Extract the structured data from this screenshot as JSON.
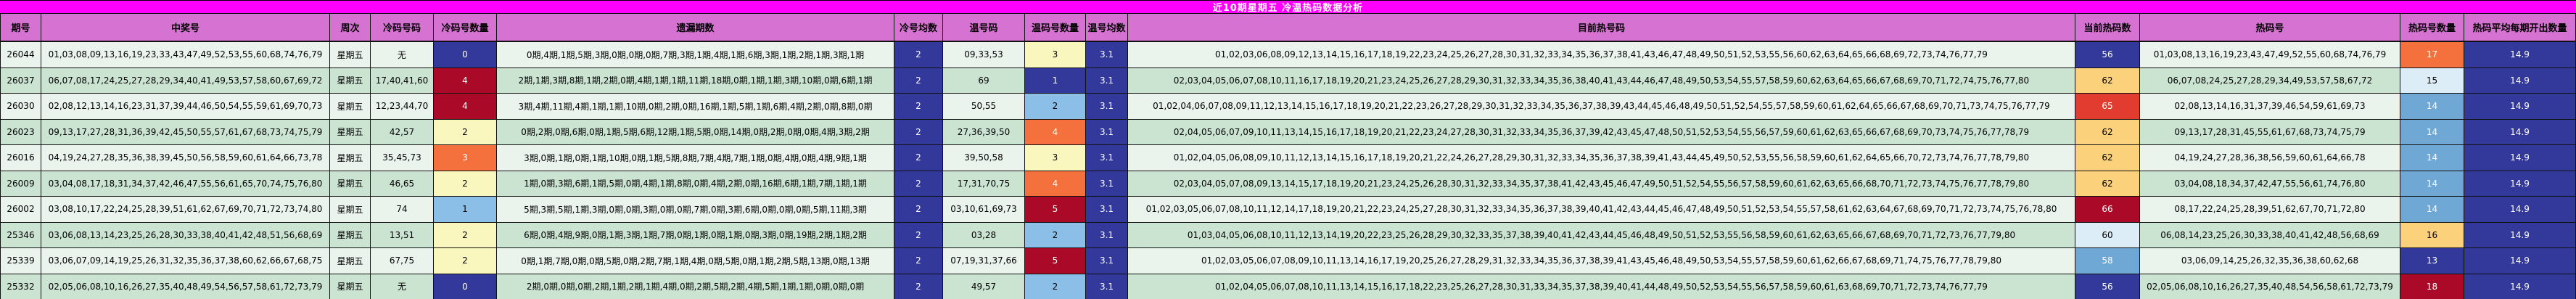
{
  "title": "近10期星期五 冷温热码数据分析",
  "colors": {
    "title_bg": "#FF00FF",
    "title_fg": "#FFFFFF",
    "header_bg": "#D673D2",
    "header_fg": "#000000",
    "row_light": "#EAF4ED",
    "row_dark": "#CBE4D2",
    "grid_line": "#111111",
    "cell_palette": {
      "navy": {
        "bg": "#33389B",
        "fg": "#FFFFFF"
      },
      "dark_red": {
        "bg": "#AA0A28",
        "fg": "#FFFFFF"
      },
      "red": {
        "bg": "#E23B30",
        "fg": "#FFFFFF"
      },
      "orange": {
        "bg": "#F4713D",
        "fg": "#FFFFFF"
      },
      "light_orange": {
        "bg": "#FBD27B",
        "fg": "#000000"
      },
      "light_yellow": {
        "bg": "#FAF7BE",
        "fg": "#000000"
      },
      "light_blue": {
        "bg": "#8CBFE8",
        "fg": "#000000"
      },
      "medium_blue": {
        "bg": "#6FA8D4",
        "fg": "#FFFFFF"
      },
      "pale_blue": {
        "bg": "#DCEDF8",
        "fg": "#000000"
      }
    }
  },
  "table": {
    "columns": [
      {
        "key": "period",
        "label": "期号"
      },
      {
        "key": "winning",
        "label": "中奖号"
      },
      {
        "key": "week",
        "label": "周次"
      },
      {
        "key": "cold_nums",
        "label": "冷码号码"
      },
      {
        "key": "cold_count",
        "label": "冷码号数量"
      },
      {
        "key": "miss",
        "label": "遗漏期数"
      },
      {
        "key": "cold_avg",
        "label": "冷号均数",
        "colored": "navy"
      },
      {
        "key": "warm_nums",
        "label": "温号码"
      },
      {
        "key": "warm_count",
        "label": "温码号数量"
      },
      {
        "key": "warm_avg",
        "label": "温号均数",
        "colored": "navy"
      },
      {
        "key": "hot_current",
        "label": "目前热号码"
      },
      {
        "key": "hot_current_count",
        "label": "当前热码数"
      },
      {
        "key": "hot_nums",
        "label": "热码号"
      },
      {
        "key": "hot_count",
        "label": "热码号数量"
      },
      {
        "key": "hot_avg",
        "label": "热码平均每期开出数量",
        "colored": "navy"
      }
    ],
    "rows": [
      {
        "period": "26044",
        "winning": "01,03,08,09,13,16,19,23,33,43,47,49,52,53,55,60,68,74,76,79",
        "week": "星期五",
        "cold_nums": "无",
        "cold_count": "0",
        "cold_count_color": "navy",
        "miss": "0期,4期,1期,5期,3期,0期,0期,0期,7期,3期,1期,4期,1期,6期,3期,1期,2期,1期,3期,1期",
        "cold_avg": "2",
        "warm_nums": "09,33,53",
        "warm_count": "3",
        "warm_count_color": "light_yellow",
        "warm_avg": "3.1",
        "hot_current": "01,02,03,06,08,09,12,13,14,15,16,17,18,19,22,23,24,25,26,27,28,30,31,32,33,34,35,36,37,38,41,43,46,47,48,49,50,51,52,53,55,56,60,62,63,64,65,66,68,69,72,73,74,76,77,79",
        "hot_current_count": "56",
        "hot_current_count_color": "navy",
        "hot_nums": "01,03,08,13,16,19,23,43,47,49,52,55,60,68,74,76,79",
        "hot_count": "17",
        "hot_count_color": "orange",
        "hot_avg": "14.9"
      },
      {
        "period": "26037",
        "winning": "06,07,08,17,24,25,27,28,29,34,40,41,49,53,57,58,60,67,69,72",
        "week": "星期五",
        "cold_nums": "17,40,41,60",
        "cold_count": "4",
        "cold_count_color": "dark_red",
        "miss": "2期,1期,3期,8期,1期,2期,0期,4期,1期,1期,11期,18期,0期,1期,1期,3期,10期,0期,6期,1期",
        "cold_avg": "2",
        "warm_nums": "69",
        "warm_count": "1",
        "warm_count_color": "navy",
        "warm_avg": "3.1",
        "hot_current": "02,03,04,05,06,07,08,10,11,16,17,18,19,20,21,23,24,25,26,27,28,29,30,31,32,33,34,35,36,38,40,41,43,44,46,47,48,49,50,53,54,55,57,58,59,60,62,63,64,65,66,67,68,69,70,71,72,74,75,76,77,80",
        "hot_current_count": "62",
        "hot_current_count_color": "light_orange",
        "hot_nums": "06,07,08,24,25,27,28,29,34,49,53,57,58,67,72",
        "hot_count": "15",
        "hot_count_color": "pale_blue",
        "hot_avg": "14.9"
      },
      {
        "period": "26030",
        "winning": "02,08,12,13,14,16,23,31,37,39,44,46,50,54,55,59,61,69,70,73",
        "week": "星期五",
        "cold_nums": "12,23,44,70",
        "cold_count": "4",
        "cold_count_color": "dark_red",
        "miss": "3期,4期,11期,4期,1期,1期,10期,0期,2期,0期,16期,1期,5期,1期,6期,4期,2期,0期,8期,0期",
        "cold_avg": "2",
        "warm_nums": "50,55",
        "warm_count": "2",
        "warm_count_color": "light_blue",
        "warm_avg": "3.1",
        "hot_current": "01,02,04,06,07,08,09,11,12,13,14,15,16,17,18,19,20,21,22,23,26,27,28,29,30,31,32,33,34,35,36,37,38,39,43,44,45,46,48,49,50,51,52,54,55,57,58,59,60,61,62,64,65,66,67,68,69,70,71,73,74,75,76,77,79",
        "hot_current_count": "65",
        "hot_current_count_color": "red",
        "hot_nums": "02,08,13,14,16,31,37,39,46,54,59,61,69,73",
        "hot_count": "14",
        "hot_count_color": "medium_blue",
        "hot_avg": "14.9"
      },
      {
        "period": "26023",
        "winning": "09,13,17,27,28,31,36,39,42,45,50,55,57,61,67,68,73,74,75,79",
        "week": "星期五",
        "cold_nums": "42,57",
        "cold_count": "2",
        "cold_count_color": "light_yellow",
        "miss": "0期,2期,0期,6期,0期,1期,5期,6期,12期,1期,5期,0期,14期,0期,2期,0期,0期,4期,3期,2期",
        "cold_avg": "2",
        "warm_nums": "27,36,39,50",
        "warm_count": "4",
        "warm_count_color": "orange",
        "warm_avg": "3.1",
        "hot_current": "02,04,05,06,07,09,10,11,13,14,15,16,17,18,19,20,21,22,23,24,27,28,30,31,32,33,34,35,36,37,39,42,43,45,47,48,50,51,52,53,54,55,56,57,59,60,61,62,63,65,66,67,68,69,70,73,74,75,76,77,78,79",
        "hot_current_count": "62",
        "hot_current_count_color": "light_orange",
        "hot_nums": "09,13,17,28,31,45,55,61,67,68,73,74,75,79",
        "hot_count": "14",
        "hot_count_color": "medium_blue",
        "hot_avg": "14.9"
      },
      {
        "period": "26016",
        "winning": "04,19,24,27,28,35,36,38,39,45,50,56,58,59,60,61,64,66,73,78",
        "week": "星期五",
        "cold_nums": "35,45,73",
        "cold_count": "3",
        "cold_count_color": "orange",
        "miss": "3期,0期,1期,0期,1期,10期,0期,1期,5期,8期,7期,4期,7期,1期,0期,4期,0期,4期,9期,1期",
        "cold_avg": "2",
        "warm_nums": "39,50,58",
        "warm_count": "3",
        "warm_count_color": "light_yellow",
        "warm_avg": "3.1",
        "hot_current": "01,02,04,05,06,08,09,10,11,12,13,14,15,16,17,18,19,20,21,22,24,26,27,28,29,30,31,32,33,34,35,36,37,38,39,41,43,44,45,49,50,52,53,55,56,58,59,60,61,62,64,65,66,70,72,73,74,76,77,78,79,80",
        "hot_current_count": "62",
        "hot_current_count_color": "light_orange",
        "hot_nums": "04,19,24,27,28,36,38,56,59,60,61,64,66,78",
        "hot_count": "14",
        "hot_count_color": "medium_blue",
        "hot_avg": "14.9"
      },
      {
        "period": "26009",
        "winning": "03,04,08,17,18,31,34,37,42,46,47,55,56,61,65,70,74,75,76,80",
        "week": "星期五",
        "cold_nums": "46,65",
        "cold_count": "2",
        "cold_count_color": "light_yellow",
        "miss": "1期,0期,3期,6期,1期,5期,0期,4期,1期,8期,0期,4期,2期,0期,16期,6期,1期,7期,1期,1期",
        "cold_avg": "2",
        "warm_nums": "17,31,70,75",
        "warm_count": "4",
        "warm_count_color": "orange",
        "warm_avg": "3.1",
        "hot_current": "02,03,04,05,07,08,09,13,14,15,17,18,19,20,21,23,24,25,26,28,30,31,32,33,34,35,37,38,41,42,43,45,46,47,49,50,51,52,54,55,56,57,58,59,60,61,62,63,65,66,68,70,71,72,73,74,75,76,77,78,79,80",
        "hot_current_count": "62",
        "hot_current_count_color": "light_orange",
        "hot_nums": "03,04,08,18,34,37,42,47,55,56,61,74,76,80",
        "hot_count": "14",
        "hot_count_color": "medium_blue",
        "hot_avg": "14.9"
      },
      {
        "period": "26002",
        "winning": "03,08,10,17,22,24,25,28,39,51,61,62,67,69,70,71,72,73,74,80",
        "week": "星期五",
        "cold_nums": "74",
        "cold_count": "1",
        "cold_count_color": "light_blue",
        "miss": "5期,3期,5期,1期,3期,0期,0期,3期,0期,0期,7期,0期,3期,6期,0期,0期,0期,5期,11期,3期",
        "cold_avg": "2",
        "warm_nums": "03,10,61,69,73",
        "warm_count": "5",
        "warm_count_color": "dark_red",
        "warm_avg": "3.1",
        "hot_current": "01,02,03,05,06,07,08,10,11,12,14,17,18,19,20,21,22,23,24,25,27,28,30,31,32,33,34,35,36,37,38,39,40,41,42,43,44,45,46,47,48,49,50,51,52,53,54,55,57,58,61,62,63,64,67,68,69,70,71,72,73,74,75,76,78,80",
        "hot_current_count": "66",
        "hot_current_count_color": "dark_red",
        "hot_nums": "08,17,22,24,25,28,39,51,62,67,70,71,72,80",
        "hot_count": "14",
        "hot_count_color": "medium_blue",
        "hot_avg": "14.9"
      },
      {
        "period": "25346",
        "winning": "03,06,08,13,14,23,25,26,28,30,33,38,40,41,42,48,51,56,68,69",
        "week": "星期五",
        "cold_nums": "13,51",
        "cold_count": "2",
        "cold_count_color": "light_yellow",
        "miss": "6期,0期,4期,9期,0期,1期,3期,1期,7期,0期,1期,0期,1期,0期,3期,0期,19期,2期,1期,2期",
        "cold_avg": "2",
        "warm_nums": "03,28",
        "warm_count": "2",
        "warm_count_color": "light_blue",
        "warm_avg": "3.1",
        "hot_current": "01,03,04,05,06,08,10,11,12,13,14,19,20,22,23,25,26,28,29,30,32,33,35,37,38,39,40,41,42,43,44,45,46,48,49,50,51,52,53,55,56,58,59,60,61,62,63,65,66,67,68,69,70,71,72,73,76,77,79,80",
        "hot_current_count": "60",
        "hot_current_count_color": "pale_blue",
        "hot_nums": "06,08,14,23,25,26,30,33,38,40,41,42,48,56,68,69",
        "hot_count": "16",
        "hot_count_color": "light_orange",
        "hot_avg": "14.9"
      },
      {
        "period": "25339",
        "winning": "03,06,07,09,14,19,25,26,31,32,35,36,37,38,60,62,66,67,68,75",
        "week": "星期五",
        "cold_nums": "67,75",
        "cold_count": "2",
        "cold_count_color": "light_yellow",
        "miss": "0期,1期,7期,0期,0期,5期,0期,2期,7期,1期,4期,0期,5期,0期,1期,2期,5期,13期,0期,13期",
        "cold_avg": "2",
        "warm_nums": "07,19,31,37,66",
        "warm_count": "5",
        "warm_count_color": "dark_red",
        "warm_avg": "3.1",
        "hot_current": "01,02,03,05,06,07,08,09,10,11,13,14,16,17,19,20,25,26,27,28,29,31,32,33,34,35,36,37,38,39,41,43,45,46,48,49,50,53,54,55,57,58,59,60,61,62,66,67,68,69,71,74,75,76,77,78,79,80",
        "hot_current_count": "58",
        "hot_current_count_color": "medium_blue",
        "hot_nums": "03,06,09,14,25,26,32,35,36,38,60,62,68",
        "hot_count": "13",
        "hot_count_color": "navy",
        "hot_avg": "14.9"
      },
      {
        "period": "25332",
        "winning": "02,05,06,08,10,16,26,27,35,40,48,49,54,56,57,58,61,72,73,79",
        "week": "星期五",
        "cold_nums": "无",
        "cold_count": "0",
        "cold_count_color": "navy",
        "miss": "2期,0期,0期,0期,2期,1期,2期,1期,4期,0期,2期,5期,2期,4期,5期,1期,1期,0期,0期,0期",
        "cold_avg": "2",
        "warm_nums": "49,57",
        "warm_count": "2",
        "warm_count_color": "light_blue",
        "warm_avg": "3.1",
        "hot_current": "01,02,04,05,06,07,08,10,11,13,14,15,16,17,18,22,23,25,26,27,28,30,31,33,34,35,37,38,39,40,41,44,48,49,50,52,53,54,55,56,57,58,59,60,61,63,68,69,70,71,72,73,74,76,77,79",
        "hot_current_count": "56",
        "hot_current_count_color": "navy",
        "hot_nums": "02,05,06,08,10,16,26,27,35,40,48,54,56,58,61,72,73,79",
        "hot_count": "18",
        "hot_count_color": "dark_red",
        "hot_avg": "14.9"
      }
    ]
  }
}
